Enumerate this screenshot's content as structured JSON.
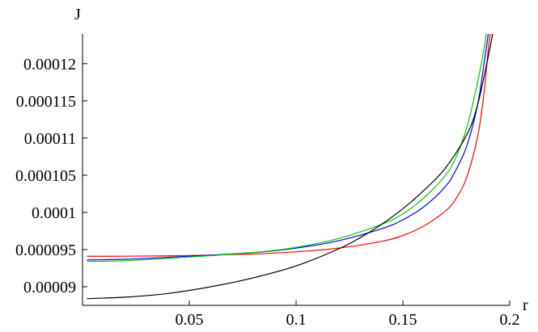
{
  "chart_data": {
    "type": "line",
    "title": "",
    "xlabel": "r",
    "ylabel": "J",
    "xlim": [
      0,
      0.2
    ],
    "ylim": [
      8.75e-05,
      0.000124
    ],
    "grid": false,
    "legend": "none",
    "x_ticks": [
      0.05,
      0.1,
      0.15,
      0.2
    ],
    "x_tick_labels": [
      "0.05",
      "0.1",
      "0.15",
      "0.2"
    ],
    "y_ticks": [
      9e-05,
      9.5e-05,
      0.0001,
      0.000105,
      0.00011,
      0.000115,
      0.00012
    ],
    "y_tick_labels": [
      "0.00009",
      "0.000095",
      "0.0001",
      "0.000105",
      "0.00011",
      "0.000115",
      "0.00012"
    ],
    "series": [
      {
        "color": "#ff0000",
        "points": [
          [
            0.002,
            9.41e-05
          ],
          [
            0.02,
            9.41e-05
          ],
          [
            0.05,
            9.42e-05
          ],
          [
            0.08,
            9.44e-05
          ],
          [
            0.1,
            9.47e-05
          ],
          [
            0.12,
            9.52e-05
          ],
          [
            0.14,
            9.61e-05
          ],
          [
            0.15,
            9.69e-05
          ],
          [
            0.16,
            9.82e-05
          ],
          [
            0.17,
            0.0001002
          ],
          [
            0.175,
            0.0001019
          ],
          [
            0.18,
            0.0001048
          ],
          [
            0.185,
            0.0001102
          ],
          [
            0.188,
            0.000116
          ],
          [
            0.19,
            0.000122
          ],
          [
            0.191,
            0.000124
          ]
        ]
      },
      {
        "color": "#0000ff",
        "points": [
          [
            0.002,
            9.36e-05
          ],
          [
            0.02,
            9.37e-05
          ],
          [
            0.05,
            9.41e-05
          ],
          [
            0.08,
            9.46e-05
          ],
          [
            0.1,
            9.52e-05
          ],
          [
            0.12,
            9.62e-05
          ],
          [
            0.14,
            9.78e-05
          ],
          [
            0.15,
            9.9e-05
          ],
          [
            0.16,
            0.0001008
          ],
          [
            0.17,
            0.0001035
          ],
          [
            0.175,
            0.0001058
          ],
          [
            0.18,
            0.000109
          ],
          [
            0.185,
            0.0001145
          ],
          [
            0.188,
            0.00012
          ],
          [
            0.19,
            0.000124
          ]
        ]
      },
      {
        "color": "#00cc00",
        "points": [
          [
            0.002,
            9.34e-05
          ],
          [
            0.02,
            9.35e-05
          ],
          [
            0.05,
            9.4e-05
          ],
          [
            0.08,
            9.46e-05
          ],
          [
            0.1,
            9.53e-05
          ],
          [
            0.12,
            9.65e-05
          ],
          [
            0.14,
            9.84e-05
          ],
          [
            0.15,
            9.98e-05
          ],
          [
            0.16,
            0.000102
          ],
          [
            0.17,
            0.000105
          ],
          [
            0.175,
            0.0001075
          ],
          [
            0.18,
            0.0001115
          ],
          [
            0.185,
            0.0001175
          ],
          [
            0.188,
            0.000122
          ],
          [
            0.189,
            0.000124
          ]
        ]
      },
      {
        "color": "#000000",
        "points": [
          [
            0.002,
            8.84e-05
          ],
          [
            0.02,
            8.86e-05
          ],
          [
            0.04,
            8.91e-05
          ],
          [
            0.06,
            9e-05
          ],
          [
            0.08,
            9.12e-05
          ],
          [
            0.1,
            9.28e-05
          ],
          [
            0.12,
            9.51e-05
          ],
          [
            0.13,
            9.66e-05
          ],
          [
            0.14,
            9.84e-05
          ],
          [
            0.15,
            0.0001005
          ],
          [
            0.16,
            0.000103
          ],
          [
            0.17,
            0.000106
          ],
          [
            0.18,
            0.0001105
          ],
          [
            0.185,
            0.0001145
          ],
          [
            0.19,
            0.000121
          ],
          [
            0.192,
            0.000124
          ]
        ]
      }
    ]
  }
}
